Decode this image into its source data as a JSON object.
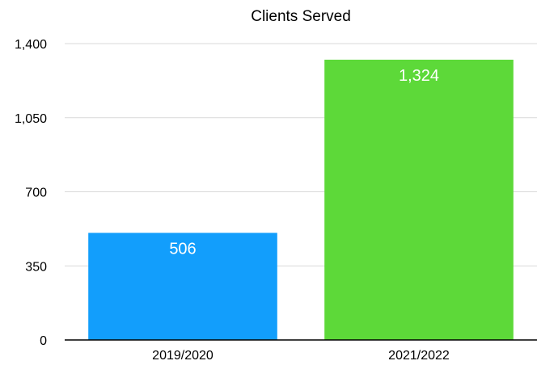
{
  "chart_data": {
    "type": "bar",
    "title": "Clients Served",
    "xlabel": "",
    "ylabel": "",
    "categories": [
      "2019/2020",
      "2021/2022"
    ],
    "values": [
      506,
      1324
    ],
    "value_labels": [
      "506",
      "1,324"
    ],
    "ylim": [
      0,
      1400
    ],
    "yticks": [
      0,
      350,
      700,
      1050,
      1400
    ],
    "ytick_labels": [
      "0",
      "350",
      "700",
      "1,050",
      "1,400"
    ],
    "colors": [
      "#129EFC",
      "#5DD939"
    ],
    "grid": true,
    "legend": "none"
  }
}
